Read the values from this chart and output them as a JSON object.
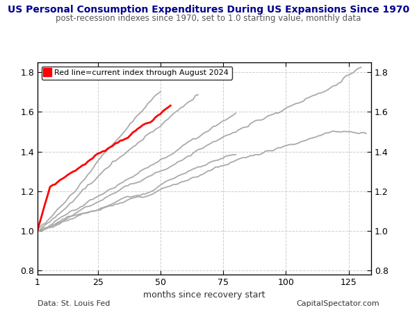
{
  "title": "US Personal Consumption Expenditures During US Expansions Since 1970",
  "subtitle": "post-recession indexes since 1970, set to 1.0 starting value, monthly data",
  "legend_text": "Red line=current index through August 2024",
  "xlabel": "months since recovery start",
  "footer_left": "Data: St. Louis Fed",
  "footer_right": "CapitalSpectator.com",
  "xlim": [
    1,
    134
  ],
  "ylim": [
    0.78,
    1.85
  ],
  "yticks": [
    0.8,
    1.0,
    1.2,
    1.4,
    1.6,
    1.8
  ],
  "xticks": [
    1,
    25,
    50,
    75,
    100,
    125
  ],
  "title_color": "#00008B",
  "subtitle_color": "#555555",
  "footer_color": "#333333",
  "gray_color": "#aaaaaa",
  "red_color": "#ff0000",
  "background_color": "#ffffff",
  "title_fontsize": 10,
  "subtitle_fontsize": 8.5,
  "axis_fontsize": 9,
  "footer_fontsize": 8
}
